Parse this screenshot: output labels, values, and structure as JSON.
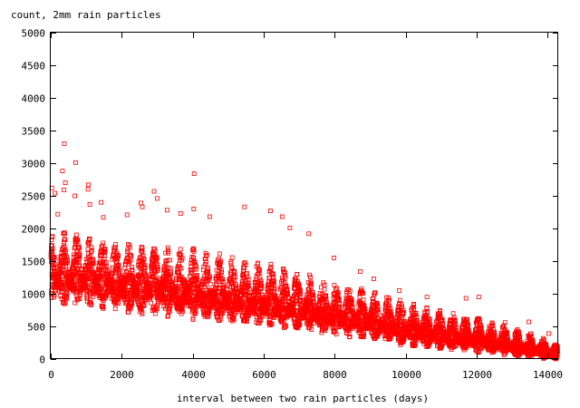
{
  "chart_data": {
    "type": "scatter",
    "title": "",
    "ylabel": "count, 2mm rain particles",
    "xlabel": "interval between two rain particles (days)",
    "xlim": [
      0,
      14300
    ],
    "ylim": [
      0,
      5000
    ],
    "x_ticks": [
      0,
      2000,
      4000,
      6000,
      8000,
      10000,
      12000,
      14000
    ],
    "y_ticks": [
      0,
      500,
      1000,
      1500,
      2000,
      2500,
      3000,
      3500,
      4000,
      4500,
      5000
    ],
    "marker": "open-square",
    "grid": false,
    "legend": "none",
    "series_color": "#ff0000",
    "cycle_period_days": 365,
    "envelope": {
      "description": "dense band of points oscillating with ~yearly period, decaying toward zero",
      "x": [
        0,
        1000,
        2000,
        3000,
        4000,
        5000,
        6000,
        7000,
        8000,
        9000,
        10000,
        11000,
        12000,
        13000,
        14000,
        14300
      ],
      "low": [
        800,
        800,
        700,
        650,
        600,
        550,
        500,
        450,
        350,
        300,
        200,
        150,
        100,
        50,
        0,
        0
      ],
      "high": [
        2000,
        1900,
        1800,
        1750,
        1700,
        1600,
        1500,
        1350,
        1200,
        1050,
        900,
        750,
        650,
        500,
        300,
        200
      ],
      "center": [
        1300,
        1280,
        1200,
        1120,
        1050,
        950,
        870,
        780,
        680,
        580,
        480,
        380,
        300,
        200,
        100,
        60
      ]
    },
    "outliers": [
      {
        "x": 30,
        "y": 2620
      },
      {
        "x": 120,
        "y": 2540
      },
      {
        "x": 200,
        "y": 2220
      },
      {
        "x": 380,
        "y": 3300
      },
      {
        "x": 330,
        "y": 2880
      },
      {
        "x": 410,
        "y": 2700
      },
      {
        "x": 370,
        "y": 2590
      },
      {
        "x": 700,
        "y": 3010
      },
      {
        "x": 680,
        "y": 2500
      },
      {
        "x": 1060,
        "y": 2670
      },
      {
        "x": 1050,
        "y": 2600
      },
      {
        "x": 1100,
        "y": 2370
      },
      {
        "x": 1420,
        "y": 2400
      },
      {
        "x": 1480,
        "y": 2170
      },
      {
        "x": 2150,
        "y": 2210
      },
      {
        "x": 2540,
        "y": 2390
      },
      {
        "x": 2580,
        "y": 2330
      },
      {
        "x": 2910,
        "y": 2570
      },
      {
        "x": 3000,
        "y": 2460
      },
      {
        "x": 3280,
        "y": 2280
      },
      {
        "x": 3660,
        "y": 2230
      },
      {
        "x": 4040,
        "y": 2840
      },
      {
        "x": 4030,
        "y": 2300
      },
      {
        "x": 4480,
        "y": 2180
      },
      {
        "x": 5460,
        "y": 2330
      },
      {
        "x": 6190,
        "y": 2270
      },
      {
        "x": 6520,
        "y": 2180
      },
      {
        "x": 6740,
        "y": 2010
      },
      {
        "x": 7270,
        "y": 1920
      },
      {
        "x": 7980,
        "y": 1550
      },
      {
        "x": 8720,
        "y": 1340
      },
      {
        "x": 9100,
        "y": 1230
      },
      {
        "x": 9820,
        "y": 1050
      },
      {
        "x": 10600,
        "y": 950
      },
      {
        "x": 11700,
        "y": 930
      },
      {
        "x": 12060,
        "y": 950
      },
      {
        "x": 12800,
        "y": 560
      },
      {
        "x": 13470,
        "y": 570
      },
      {
        "x": 14030,
        "y": 390
      }
    ]
  }
}
